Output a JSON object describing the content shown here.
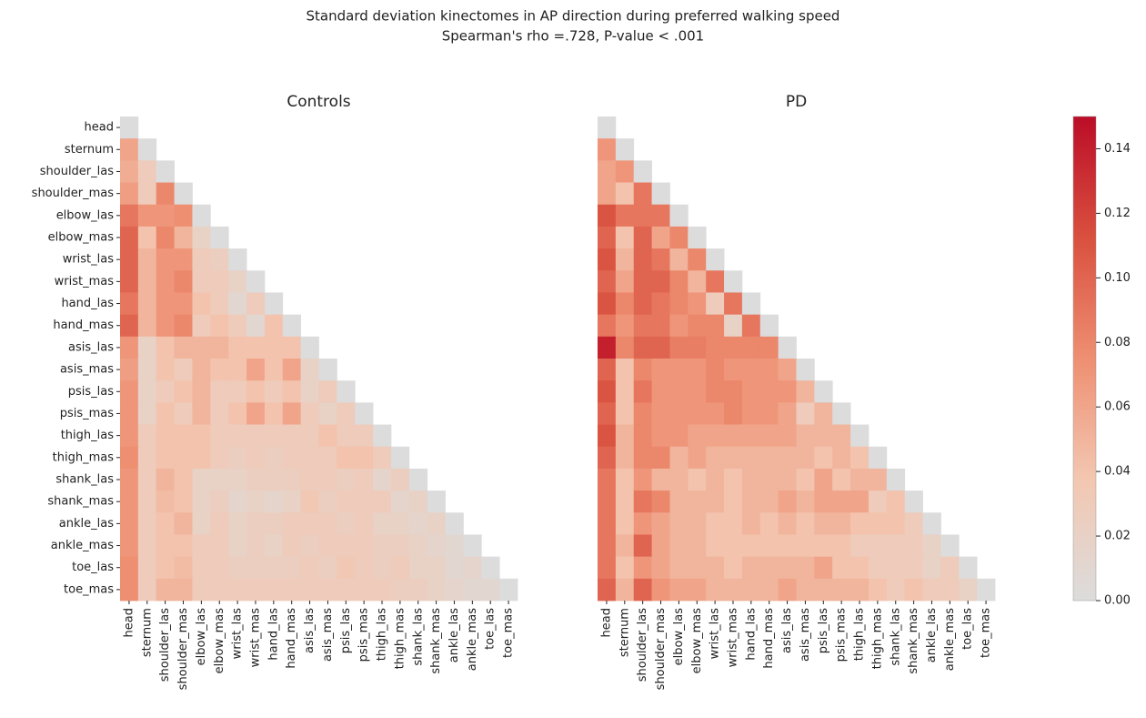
{
  "chart_data": {
    "type": "heatmap",
    "title": "Standard deviation kinectomes in AP direction during preferred walking speed",
    "subtitle": "Spearman's rho =.728, P-value < .001",
    "labels": [
      "head",
      "sternum",
      "shoulder_las",
      "shoulder_mas",
      "elbow_las",
      "elbow_mas",
      "wrist_las",
      "wrist_mas",
      "hand_las",
      "hand_mas",
      "asis_las",
      "asis_mas",
      "psis_las",
      "psis_mas",
      "thigh_las",
      "thigh_mas",
      "shank_las",
      "shank_mas",
      "ankle_las",
      "ankle_mas",
      "toe_las",
      "toe_mas"
    ],
    "clim": [
      0,
      0.15
    ],
    "colormap": [
      "#dcdcdc",
      "#f3c7b1",
      "#ee8f72",
      "#d9503f",
      "#bb0d27"
    ],
    "cticks": [
      {
        "value": 0,
        "label": "0.00"
      },
      {
        "value": 0.02,
        "label": "0.02"
      },
      {
        "value": 0.04,
        "label": "0.04"
      },
      {
        "value": 0.06,
        "label": "0.06"
      },
      {
        "value": 0.08,
        "label": "0.08"
      },
      {
        "value": 0.1,
        "label": "0.10"
      },
      {
        "value": 0.12,
        "label": "0.12"
      },
      {
        "value": 0.14,
        "label": "0.14"
      }
    ],
    "panels": [
      {
        "title": "Controls",
        "values": [
          [
            0
          ],
          [
            0.06,
            0
          ],
          [
            0.055,
            0.03,
            0
          ],
          [
            0.065,
            0.03,
            0.08,
            0
          ],
          [
            0.09,
            0.07,
            0.07,
            0.075,
            0
          ],
          [
            0.1,
            0.04,
            0.08,
            0.05,
            0.02,
            0
          ],
          [
            0.1,
            0.05,
            0.07,
            0.07,
            0.03,
            0.025,
            0
          ],
          [
            0.1,
            0.05,
            0.07,
            0.08,
            0.03,
            0.03,
            0.02,
            0
          ],
          [
            0.09,
            0.05,
            0.07,
            0.07,
            0.04,
            0.03,
            0.01,
            0.03,
            0
          ],
          [
            0.1,
            0.05,
            0.07,
            0.08,
            0.03,
            0.04,
            0.03,
            0.01,
            0.04,
            0
          ],
          [
            0.07,
            0.02,
            0.04,
            0.05,
            0.05,
            0.05,
            0.04,
            0.04,
            0.04,
            0.04,
            0
          ],
          [
            0.065,
            0.02,
            0.04,
            0.03,
            0.05,
            0.04,
            0.04,
            0.06,
            0.04,
            0.06,
            0.02,
            0
          ],
          [
            0.07,
            0.02,
            0.03,
            0.04,
            0.05,
            0.03,
            0.03,
            0.04,
            0.03,
            0.04,
            0.02,
            0.03,
            0
          ],
          [
            0.07,
            0.02,
            0.04,
            0.03,
            0.05,
            0.03,
            0.04,
            0.06,
            0.04,
            0.06,
            0.03,
            0.02,
            0.03,
            0
          ],
          [
            0.07,
            0.03,
            0.04,
            0.04,
            0.04,
            0.03,
            0.03,
            0.03,
            0.03,
            0.03,
            0.03,
            0.04,
            0.03,
            0.03,
            0
          ],
          [
            0.075,
            0.03,
            0.04,
            0.04,
            0.04,
            0.03,
            0.025,
            0.03,
            0.025,
            0.03,
            0.03,
            0.03,
            0.04,
            0.04,
            0.03,
            0
          ],
          [
            0.07,
            0.03,
            0.05,
            0.04,
            0.02,
            0.02,
            0.02,
            0.025,
            0.025,
            0.025,
            0.03,
            0.03,
            0.025,
            0.03,
            0.015,
            0.025,
            0
          ],
          [
            0.07,
            0.03,
            0.045,
            0.04,
            0.02,
            0.025,
            0.015,
            0.02,
            0.015,
            0.02,
            0.035,
            0.025,
            0.03,
            0.03,
            0.03,
            0.015,
            0.02,
            0
          ],
          [
            0.07,
            0.03,
            0.04,
            0.05,
            0.02,
            0.03,
            0.02,
            0.025,
            0.025,
            0.03,
            0.03,
            0.03,
            0.025,
            0.03,
            0.02,
            0.02,
            0.015,
            0.02,
            0
          ],
          [
            0.07,
            0.03,
            0.04,
            0.04,
            0.03,
            0.03,
            0.02,
            0.025,
            0.02,
            0.03,
            0.025,
            0.03,
            0.03,
            0.03,
            0.025,
            0.025,
            0.02,
            0.015,
            0.01,
            0
          ],
          [
            0.075,
            0.03,
            0.04,
            0.045,
            0.03,
            0.03,
            0.025,
            0.025,
            0.025,
            0.025,
            0.03,
            0.025,
            0.035,
            0.03,
            0.025,
            0.03,
            0.02,
            0.02,
            0.01,
            0.015,
            0
          ],
          [
            0.075,
            0.03,
            0.05,
            0.05,
            0.03,
            0.03,
            0.03,
            0.03,
            0.03,
            0.03,
            0.03,
            0.03,
            0.03,
            0.03,
            0.03,
            0.025,
            0.025,
            0.02,
            0.015,
            0.01,
            0.01,
            0
          ]
        ]
      },
      {
        "title": "PD",
        "values": [
          [
            0
          ],
          [
            0.07,
            0
          ],
          [
            0.06,
            0.07,
            0
          ],
          [
            0.06,
            0.04,
            0.09,
            0
          ],
          [
            0.11,
            0.09,
            0.09,
            0.09,
            0
          ],
          [
            0.1,
            0.04,
            0.1,
            0.06,
            0.08,
            0
          ],
          [
            0.11,
            0.05,
            0.1,
            0.09,
            0.05,
            0.08,
            0
          ],
          [
            0.1,
            0.06,
            0.1,
            0.1,
            0.08,
            0.05,
            0.09,
            0
          ],
          [
            0.11,
            0.08,
            0.1,
            0.09,
            0.08,
            0.07,
            0.03,
            0.09,
            0
          ],
          [
            0.09,
            0.07,
            0.09,
            0.09,
            0.07,
            0.08,
            0.08,
            0.02,
            0.09,
            0
          ],
          [
            0.14,
            0.08,
            0.1,
            0.1,
            0.085,
            0.085,
            0.08,
            0.08,
            0.08,
            0.08,
            0
          ],
          [
            0.1,
            0.04,
            0.08,
            0.07,
            0.07,
            0.07,
            0.08,
            0.07,
            0.07,
            0.07,
            0.06,
            0
          ],
          [
            0.11,
            0.04,
            0.09,
            0.07,
            0.07,
            0.07,
            0.08,
            0.08,
            0.07,
            0.07,
            0.07,
            0.05,
            0
          ],
          [
            0.1,
            0.04,
            0.08,
            0.07,
            0.07,
            0.07,
            0.07,
            0.08,
            0.07,
            0.07,
            0.06,
            0.03,
            0.05,
            0
          ],
          [
            0.11,
            0.05,
            0.08,
            0.07,
            0.07,
            0.06,
            0.06,
            0.06,
            0.06,
            0.06,
            0.06,
            0.05,
            0.05,
            0.05,
            0
          ],
          [
            0.1,
            0.05,
            0.08,
            0.08,
            0.05,
            0.06,
            0.05,
            0.05,
            0.05,
            0.05,
            0.05,
            0.05,
            0.04,
            0.05,
            0.04,
            0
          ],
          [
            0.09,
            0.04,
            0.07,
            0.05,
            0.05,
            0.04,
            0.05,
            0.04,
            0.05,
            0.05,
            0.05,
            0.04,
            0.06,
            0.04,
            0.05,
            0.05,
            0
          ],
          [
            0.09,
            0.04,
            0.09,
            0.08,
            0.05,
            0.05,
            0.05,
            0.04,
            0.05,
            0.05,
            0.06,
            0.05,
            0.06,
            0.06,
            0.06,
            0.03,
            0.04,
            0
          ],
          [
            0.09,
            0.04,
            0.07,
            0.06,
            0.05,
            0.05,
            0.04,
            0.04,
            0.05,
            0.04,
            0.05,
            0.04,
            0.05,
            0.05,
            0.04,
            0.04,
            0.04,
            0.03,
            0
          ],
          [
            0.09,
            0.05,
            0.1,
            0.06,
            0.05,
            0.05,
            0.04,
            0.04,
            0.04,
            0.04,
            0.04,
            0.04,
            0.04,
            0.04,
            0.03,
            0.03,
            0.03,
            0.03,
            0.02,
            0
          ],
          [
            0.09,
            0.04,
            0.07,
            0.06,
            0.05,
            0.05,
            0.05,
            0.04,
            0.05,
            0.05,
            0.05,
            0.05,
            0.06,
            0.04,
            0.04,
            0.03,
            0.03,
            0.03,
            0.02,
            0.03,
            0
          ],
          [
            0.1,
            0.05,
            0.1,
            0.07,
            0.06,
            0.06,
            0.05,
            0.05,
            0.05,
            0.05,
            0.06,
            0.05,
            0.05,
            0.05,
            0.05,
            0.04,
            0.03,
            0.04,
            0.03,
            0.03,
            0.02,
            0
          ]
        ]
      }
    ]
  }
}
